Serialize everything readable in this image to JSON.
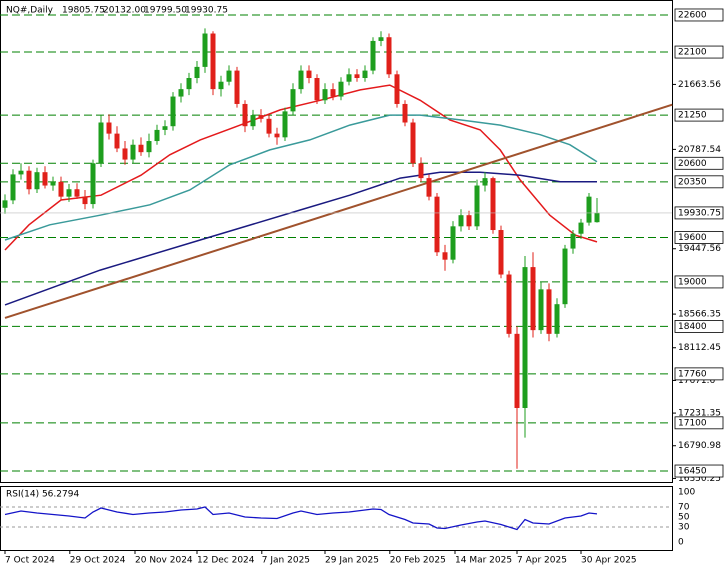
{
  "chart_data": {
    "type": "candlestick",
    "symbol": "NQ#,Daily",
    "header_labels": [
      "19805.75",
      "20132.00",
      "19799.50",
      "19930.75"
    ],
    "xlim": [
      -0.625,
      83.375
    ],
    "xticks": [
      {
        "value": 0,
        "label": "7 Oct 2024"
      },
      {
        "value": 8.1,
        "label": "29 Oct 2024"
      },
      {
        "value": 16.25,
        "label": "20 Nov 2024"
      },
      {
        "value": 24,
        "label": "12 Dec 2024"
      },
      {
        "value": 32.1,
        "label": "7 Jan 2025"
      },
      {
        "value": 40,
        "label": "29 Jan 2025"
      },
      {
        "value": 48.1,
        "label": "20 Feb 2025"
      },
      {
        "value": 56.25,
        "label": "14 Mar 2025"
      },
      {
        "value": 64,
        "label": "7 Apr 2025"
      },
      {
        "value": 72,
        "label": "30 Apr 2025"
      }
    ],
    "ylim": [
      16302,
      22802
    ],
    "yticks": [
      21663.56,
      20787.54,
      19447.56,
      18566.35,
      18112.45,
      17671.6,
      17231.35,
      16790.98,
      16350.25
    ],
    "levels": [
      22600,
      22100,
      21250,
      20600,
      20350,
      19600,
      19000,
      18400,
      17760,
      17100,
      16450
    ],
    "level_color": "#008000",
    "up_color": "#1e9e1e",
    "down_color": "#e0201a",
    "open": [
      20000,
      20100,
      20450,
      20500,
      20250,
      20480,
      20300,
      20350,
      20150,
      20250,
      20150,
      20050,
      20600,
      21150,
      21000,
      20800,
      20650,
      20850,
      20750,
      20900,
      21050,
      21100,
      21500,
      21600,
      21750,
      21900,
      22350,
      21600,
      21700,
      21850,
      21400,
      21100,
      21250,
      21200,
      21000,
      20950,
      21300,
      21600,
      21850,
      21750,
      21450,
      21600,
      21500,
      21700,
      21800,
      21750,
      21850,
      22250,
      22300,
      21800,
      21400,
      21150,
      20600,
      20400,
      20150,
      19400,
      19300,
      19750,
      19900,
      19750,
      20300,
      20400,
      19700,
      19100,
      18300,
      17300,
      19200,
      18350,
      18900,
      18300,
      18700,
      19450,
      19650,
      19800,
      19805.75
    ],
    "high": [
      20180,
      20520,
      20600,
      20560,
      20540,
      20560,
      20420,
      20420,
      20320,
      20330,
      20240,
      20650,
      21250,
      21260,
      21100,
      20900,
      20920,
      20950,
      21000,
      21120,
      21180,
      21560,
      21680,
      21820,
      21980,
      22420,
      22380,
      21780,
      21920,
      21900,
      21450,
      21320,
      21330,
      21250,
      21080,
      21350,
      21680,
      21920,
      21920,
      21800,
      21680,
      21680,
      21760,
      21880,
      21870,
      21920,
      22300,
      22380,
      22350,
      21850,
      21450,
      21200,
      20680,
      20450,
      20200,
      19500,
      19820,
      19980,
      19960,
      20380,
      20480,
      20420,
      19760,
      19150,
      18400,
      19350,
      19400,
      19000,
      18980,
      18780,
      19500,
      19700,
      19850,
      20200,
      20132
    ],
    "low": [
      19920,
      20050,
      20380,
      20180,
      20200,
      20260,
      20230,
      20100,
      20080,
      20120,
      19980,
      19990,
      20550,
      20920,
      20750,
      20580,
      20600,
      20700,
      20680,
      20850,
      20980,
      21040,
      21420,
      21520,
      21680,
      21820,
      21520,
      21500,
      21650,
      21350,
      21020,
      21050,
      21150,
      20950,
      20850,
      20900,
      21250,
      21540,
      21680,
      21400,
      21400,
      21450,
      21450,
      21650,
      21700,
      21700,
      21800,
      22180,
      21750,
      21350,
      21100,
      20550,
      20350,
      20100,
      19350,
      19150,
      19250,
      19680,
      19700,
      19700,
      20220,
      19650,
      19050,
      18250,
      16480,
      16900,
      18250,
      18300,
      18200,
      18250,
      18650,
      19380,
      19580,
      19760,
      19799.5
    ],
    "close": [
      20100,
      20450,
      20500,
      20250,
      20480,
      20300,
      20350,
      20150,
      20250,
      20150,
      20050,
      20600,
      21150,
      21000,
      20800,
      20650,
      20850,
      20750,
      20900,
      21050,
      21100,
      21500,
      21600,
      21750,
      21900,
      22350,
      21600,
      21700,
      21850,
      21400,
      21100,
      21250,
      21200,
      21000,
      20950,
      21300,
      21600,
      21850,
      21750,
      21450,
      21600,
      21500,
      21700,
      21800,
      21750,
      21850,
      22250,
      22300,
      21800,
      21400,
      21150,
      20600,
      20400,
      20150,
      19400,
      19300,
      19750,
      19900,
      19750,
      20300,
      20400,
      19700,
      19100,
      18300,
      17300,
      19200,
      18350,
      18900,
      18300,
      18700,
      19450,
      19650,
      19800,
      20150,
      19930.75
    ],
    "series": [
      {
        "color": "#e41a1c",
        "x": [
          0,
          3,
          7,
          12,
          17,
          20.6,
          24.4,
          29.4,
          34.4,
          39.4,
          44.4,
          48.1,
          51.9,
          55.6,
          59.4,
          61.9,
          64.4,
          68.1,
          71.3,
          74
        ],
        "values": [
          19430,
          19770,
          20105,
          20170,
          20440,
          20715,
          20915,
          21115,
          21320,
          21450,
          21590,
          21655,
          21450,
          21185,
          21050,
          20780,
          20375,
          19900,
          19630,
          19540
        ]
      },
      {
        "color": "#3a9a9a",
        "x": [
          0,
          5.6,
          11.9,
          18.1,
          23.1,
          28.1,
          33.1,
          38.1,
          43.1,
          48.1,
          51.9,
          56.9,
          61.9,
          66.9,
          70.6,
          74
        ],
        "values": [
          19565,
          19770,
          19900,
          20040,
          20240,
          20580,
          20780,
          20915,
          21115,
          21250,
          21250,
          21185,
          21115,
          20985,
          20850,
          20620
        ]
      },
      {
        "color": "#1a1a80",
        "x": [
          0,
          11.9,
          24.4,
          36.9,
          43.1,
          49.4,
          54.4,
          59.4,
          64.4,
          69.4,
          74
        ],
        "values": [
          18690,
          19160,
          19565,
          19970,
          20170,
          20400,
          20480,
          20480,
          20440,
          20350,
          20350
        ]
      },
      {
        "color": "#a0522d",
        "x": [
          0,
          83.4
        ],
        "values": [
          18515,
          21390
        ]
      }
    ],
    "rsi": {
      "label": "RSI(14) 56.2794",
      "ylim": [
        0,
        100
      ],
      "yticks": [
        100,
        70,
        50,
        30,
        0
      ],
      "levels": [
        70,
        30
      ],
      "color": "#1414c8",
      "x": [
        0,
        2,
        4,
        6,
        8,
        10,
        11,
        12,
        14,
        16,
        18,
        20,
        22,
        24,
        25,
        26,
        28,
        30,
        32,
        34,
        36,
        37,
        39,
        41,
        43,
        46,
        47,
        48,
        50,
        51,
        53,
        54,
        55,
        57,
        59,
        60,
        62,
        63,
        64,
        65,
        66,
        68,
        70,
        72,
        73,
        74
      ],
      "values": [
        55,
        62,
        58,
        55,
        52,
        48,
        60,
        68,
        60,
        55,
        58,
        60,
        64,
        66,
        70,
        55,
        58,
        50,
        48,
        47,
        58,
        62,
        55,
        58,
        60,
        66,
        65,
        55,
        45,
        38,
        36,
        28,
        27,
        34,
        40,
        42,
        35,
        30,
        25,
        45,
        38,
        36,
        48,
        52,
        58,
        56.2794
      ]
    }
  }
}
